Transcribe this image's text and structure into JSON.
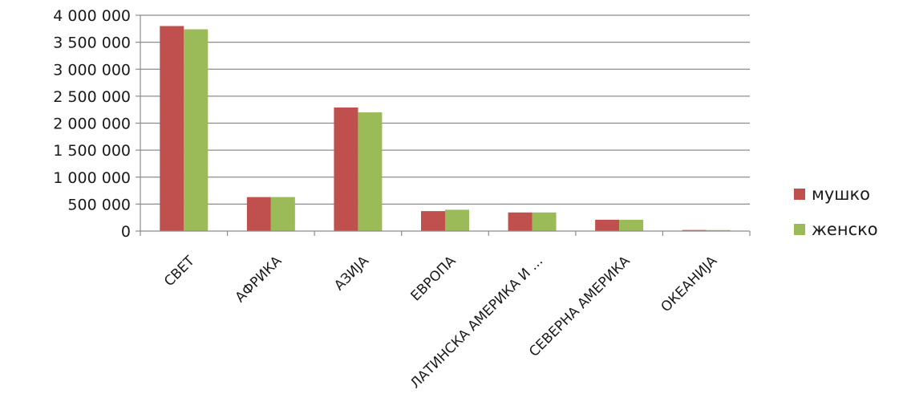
{
  "chart_data": {
    "type": "bar",
    "title": "",
    "xlabel": "",
    "ylabel": "",
    "categories": [
      "СВЕТ",
      "АФРИКА",
      "АЗИЈА",
      "ЕВРОПА",
      "ЛАТИНСКА АМЕРИКА И ...",
      "СЕВЕРНА АМЕРИКА",
      "ОКЕАНИЈА"
    ],
    "series": [
      {
        "name": "мушко",
        "color": "#c0504d",
        "values": [
          3800000,
          630000,
          2290000,
          370000,
          345000,
          210000,
          20000
        ]
      },
      {
        "name": "женско",
        "color": "#9bbb59",
        "values": [
          3740000,
          630000,
          2200000,
          395000,
          345000,
          210000,
          18000
        ]
      }
    ],
    "ylim": [
      0,
      4000000
    ],
    "yticks": [
      0,
      500000,
      1000000,
      1500000,
      2000000,
      2500000,
      3000000,
      3500000,
      4000000
    ],
    "ytick_labels": [
      "0",
      "500 000",
      "1 000 000",
      "1 500 000",
      "2 000 000",
      "2 500 000",
      "3 000 000",
      "3 500 000",
      "4 000 000"
    ],
    "grid": true,
    "legend_position": "right"
  }
}
